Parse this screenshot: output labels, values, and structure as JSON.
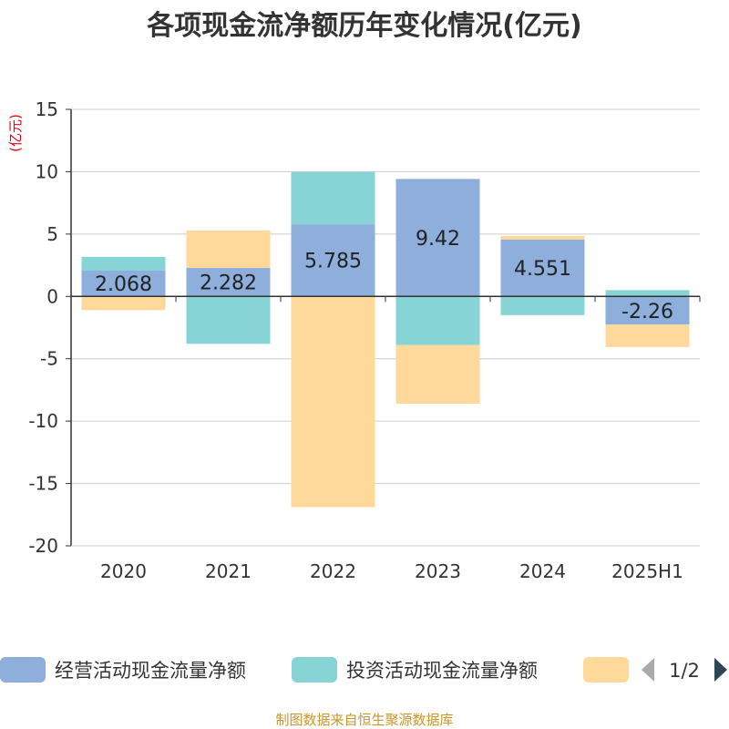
{
  "chart_data": {
    "type": "bar",
    "stacked": true,
    "title": "各项现金流净额历年变化情况(亿元)",
    "yunit": "(亿元)",
    "categories": [
      "2020",
      "2021",
      "2022",
      "2023",
      "2024",
      "2025H1"
    ],
    "ylim": [
      -20,
      15
    ],
    "yticks": [
      15,
      10,
      5,
      0,
      -5,
      -10,
      -15,
      -20
    ],
    "grid": true,
    "series": [
      {
        "name": "经营活动现金流量净额",
        "color": "#8eaedb",
        "values": [
          2.068,
          2.282,
          5.785,
          9.42,
          4.551,
          -2.26
        ]
      },
      {
        "name": "投资活动现金流量净额",
        "color": "#86d4d6",
        "values": [
          1.1,
          -3.8,
          4.2,
          -3.9,
          -1.5,
          0.5
        ]
      },
      {
        "name": "",
        "color": "#fed99b",
        "values": [
          -1.1,
          3.0,
          -16.9,
          -4.7,
          0.3,
          -1.8
        ]
      }
    ],
    "data_labels": [
      "2.068",
      "2.282",
      "5.785",
      "9.42",
      "4.551",
      "-2.26"
    ],
    "legend": {
      "position": "bottom",
      "page": "1/2"
    },
    "source": "制图数据来自恒生聚源数据库"
  }
}
